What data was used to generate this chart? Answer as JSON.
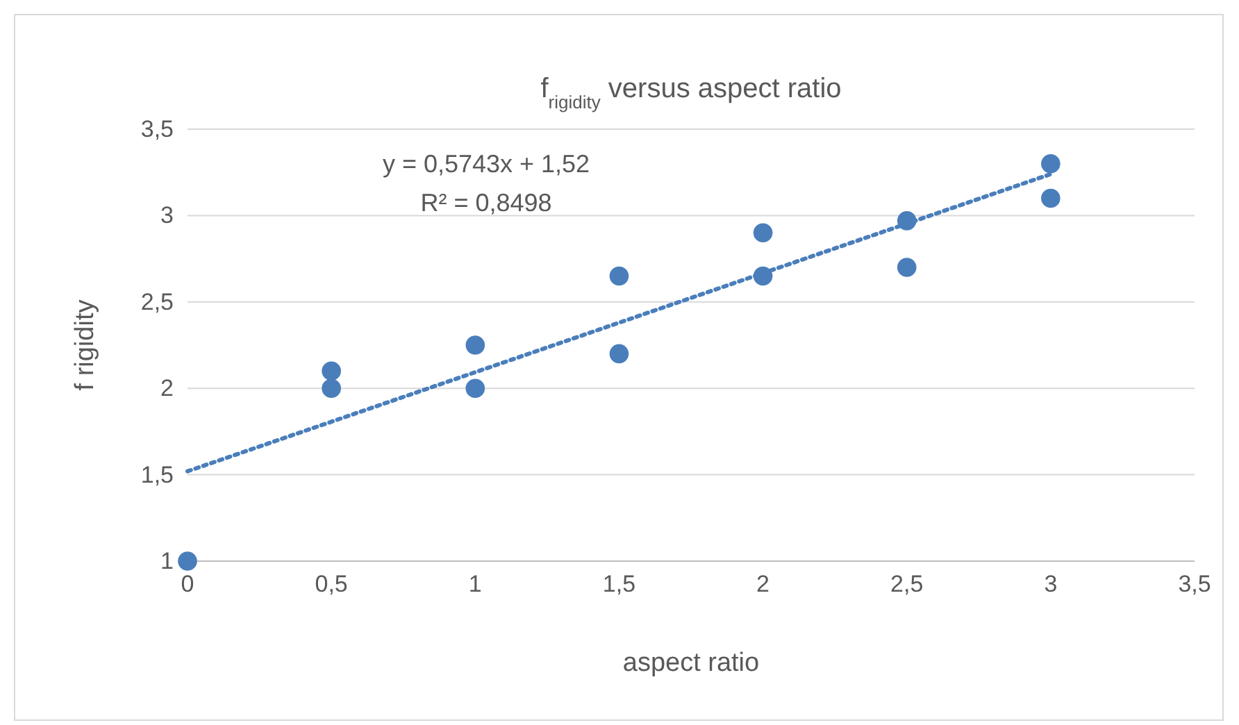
{
  "chart_data": {
    "type": "scatter",
    "title": "f$_{rigidity}$ versus aspect ratio",
    "xlabel": "aspect ratio",
    "ylabel": "f rigidity",
    "xlim": [
      0,
      3.5
    ],
    "ylim": [
      1,
      3.5
    ],
    "xticks": [
      0,
      {
        "value": 0.5,
        "label": "0,5"
      },
      1,
      {
        "value": 1.5,
        "label": "1,5"
      },
      2,
      {
        "value": 2.5,
        "label": "2,5"
      },
      3,
      {
        "value": 3.5,
        "label": "3,5"
      }
    ],
    "yticks": [
      1,
      {
        "value": 1.5,
        "label": "1,5"
      },
      2,
      {
        "value": 2.5,
        "label": "2,5"
      },
      3,
      {
        "value": 3.5,
        "label": "3,5"
      }
    ],
    "grid": "y",
    "series": [
      {
        "color": "#4a7ebb",
        "marker": "circle",
        "x": [
          0,
          0.5,
          0.5,
          1,
          1,
          1.5,
          1.5,
          2,
          2,
          2.5,
          2.5,
          3,
          3
        ],
        "values": [
          1,
          2.1,
          2,
          2.25,
          2,
          2.65,
          2.2,
          2.9,
          2.65,
          2.97,
          2.7,
          3.3,
          3.1
        ]
      },
      {
        "type": "line",
        "color": "#4a7ebb",
        "line_style": "dotted",
        "marker": "none",
        "x": [
          0,
          3
        ],
        "values": [
          1.52,
          3.24
        ]
      }
    ],
    "annotations": [
      "y = 0,5743x + 1,52",
      "R² = 0,8498"
    ]
  }
}
